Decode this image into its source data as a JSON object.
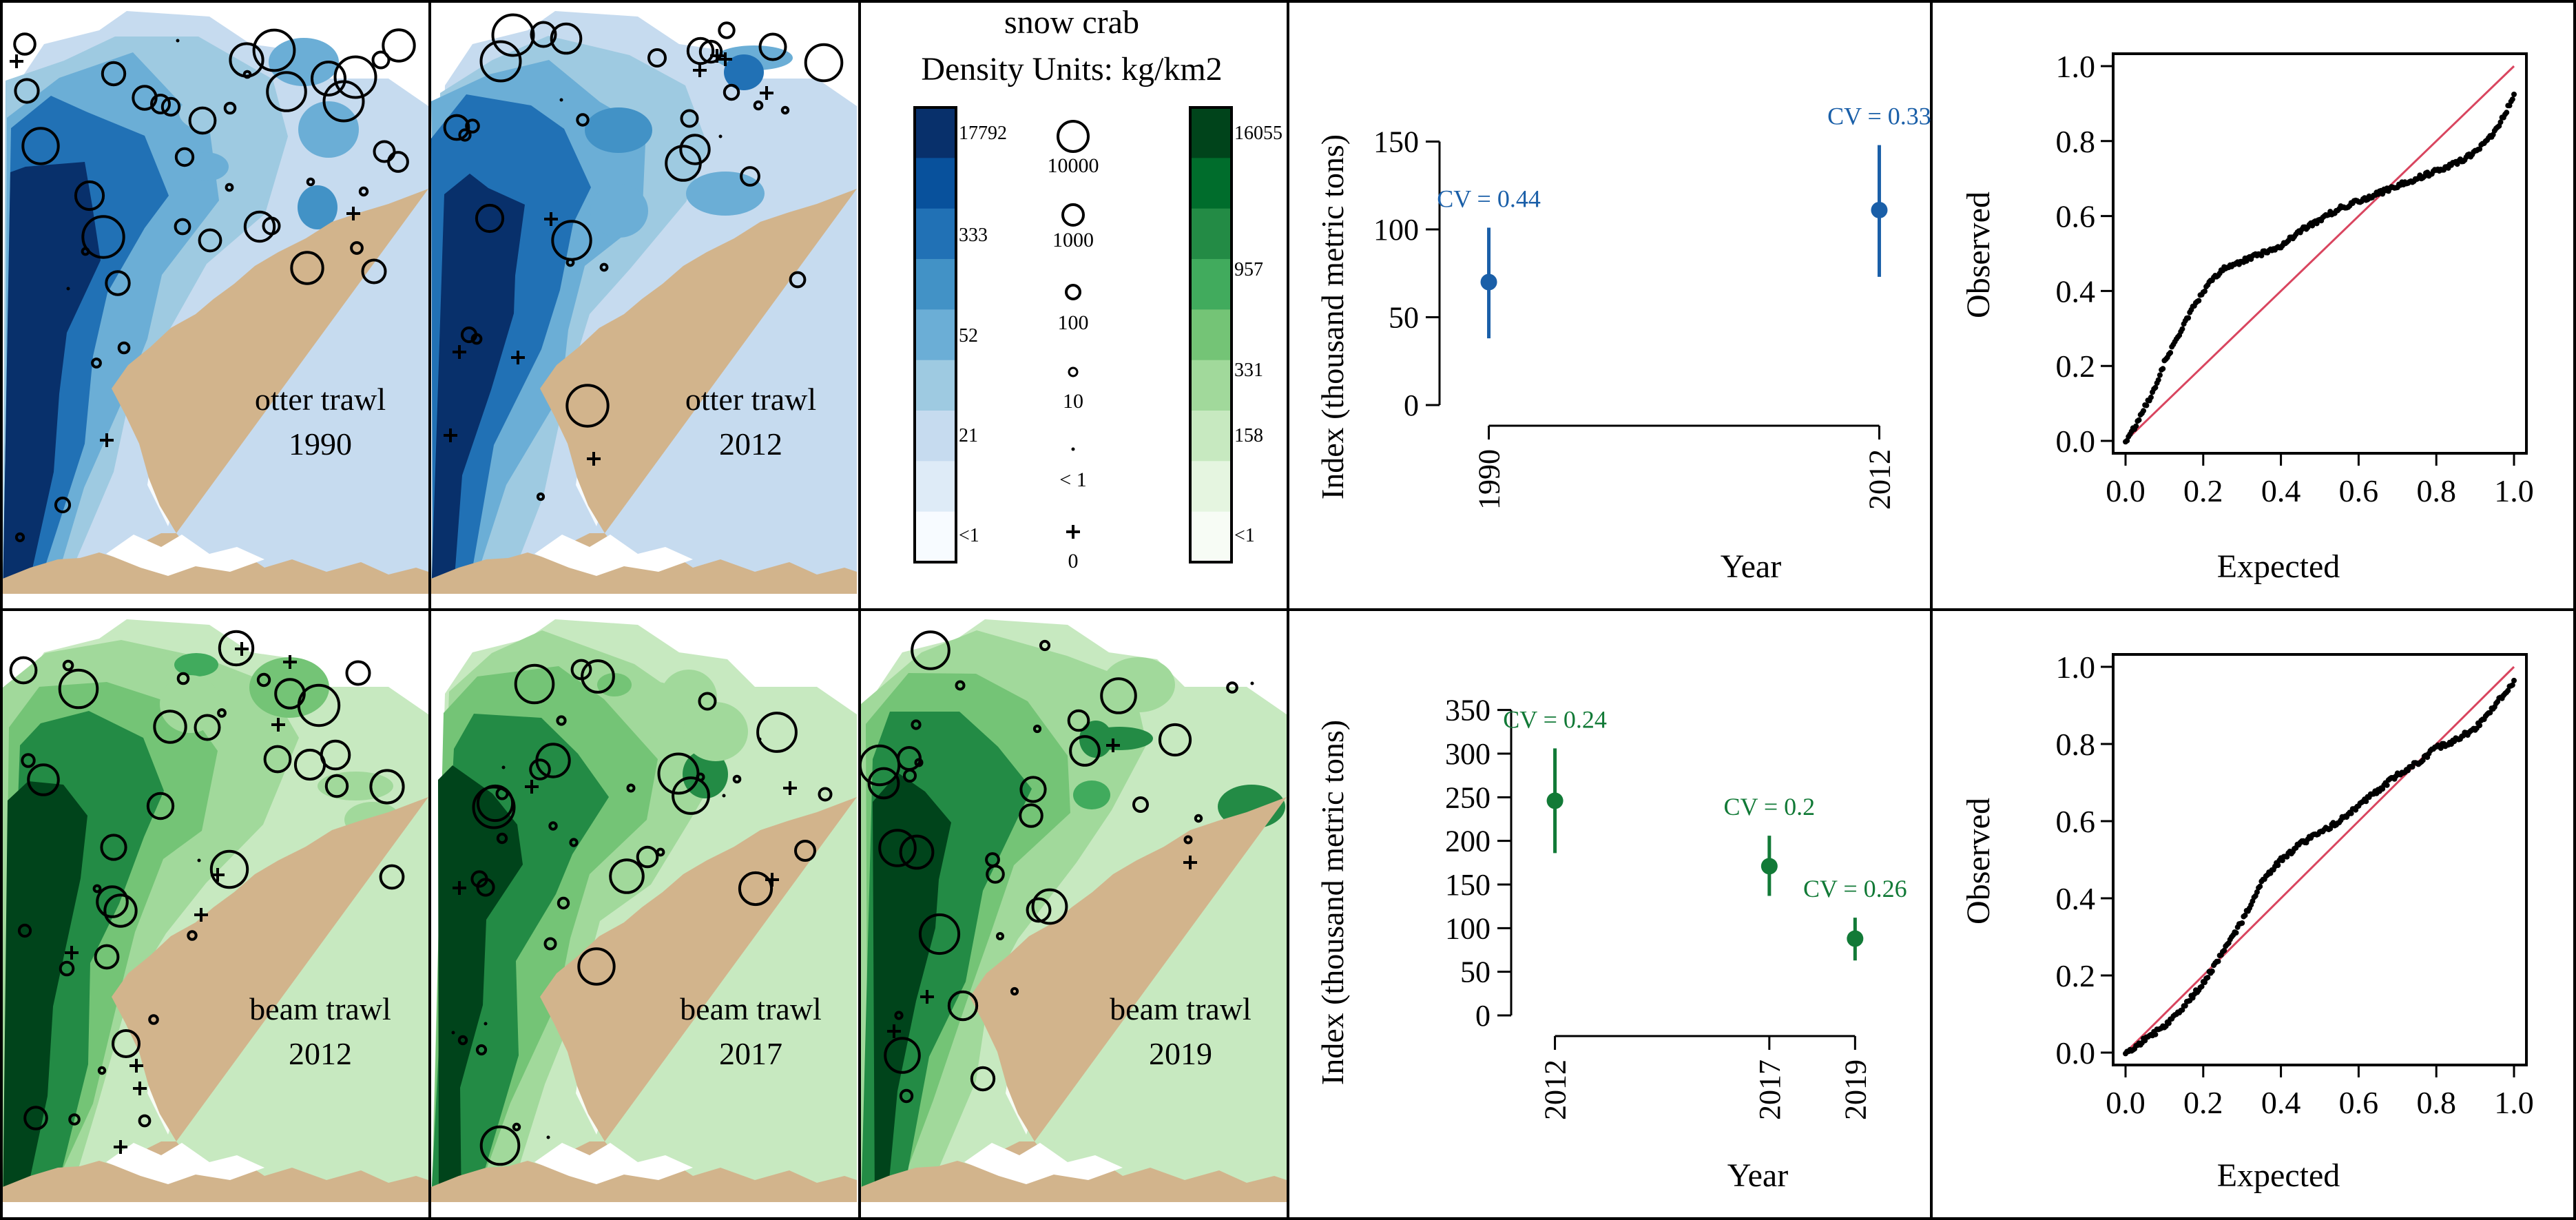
{
  "figure": {
    "legend_title": "snow crab",
    "legend_units": "Density Units: kg/km2"
  },
  "colors": {
    "blue": "#1a5fa8",
    "green": "#127a37",
    "land": "#d2b48c",
    "one_to_one": "#d9455f",
    "blue_scale": [
      "#08306b",
      "#08519c",
      "#2171b5",
      "#4292c6",
      "#6baed6",
      "#9ecae1",
      "#c6dbef",
      "#deebf7",
      "#f7fbff"
    ],
    "green_scale": [
      "#00441b",
      "#006d2c",
      "#238b45",
      "#41ab5d",
      "#74c476",
      "#a1d99b",
      "#c7e9c0",
      "#e5f5e0",
      "#f7fcf5"
    ]
  },
  "maps": [
    {
      "gear": "otter trawl",
      "year": "1990",
      "palette": "blue",
      "seed": 11
    },
    {
      "gear": "otter trawl",
      "year": "2012",
      "palette": "blue",
      "seed": 23
    },
    {
      "gear": "beam trawl",
      "year": "2012",
      "palette": "green",
      "seed": 37
    },
    {
      "gear": "beam trawl",
      "year": "2017",
      "palette": "green",
      "seed": 41
    },
    {
      "gear": "beam trawl",
      "year": "2019",
      "palette": "green",
      "seed": 53
    }
  ],
  "legend": {
    "blue_labels": [
      "17792",
      "333",
      "52",
      "21",
      "<1"
    ],
    "green_labels": [
      "16055",
      "957",
      "331",
      "158",
      "<1"
    ],
    "circle_labels": [
      "10000",
      "1000",
      "100",
      "10",
      "< 1",
      "0"
    ]
  },
  "chart_data": [
    {
      "type": "scatter",
      "subtype": "point-with-error-bar",
      "xlabel": "Year",
      "ylabel": "Index (thousand metric tons)",
      "categories": [
        "1990",
        "2012"
      ],
      "x": [
        1990,
        2012
      ],
      "values": [
        70,
        111
      ],
      "lower": [
        38,
        73
      ],
      "upper": [
        101,
        148
      ],
      "cv_labels": [
        "CV = 0.44",
        "CV = 0.33"
      ],
      "xlim": [
        1988,
        2014
      ],
      "ylim": [
        0,
        160
      ],
      "yticks": [
        "0",
        "50",
        "100",
        "150"
      ],
      "color": "#1a5fa8"
    },
    {
      "type": "scatter",
      "subtype": "qq",
      "xlabel": "Expected",
      "ylabel": "Observed",
      "xlim": [
        0,
        1
      ],
      "ylim": [
        0,
        1
      ],
      "ticks": [
        "0.0",
        "0.2",
        "0.4",
        "0.6",
        "0.8",
        "1.0"
      ],
      "curve_x": [
        0.0,
        0.02,
        0.05,
        0.08,
        0.1,
        0.13,
        0.16,
        0.2,
        0.25,
        0.3,
        0.35,
        0.4,
        0.45,
        0.5,
        0.55,
        0.6,
        0.65,
        0.7,
        0.75,
        0.8,
        0.85,
        0.9,
        0.93,
        0.96,
        0.98,
        1.0
      ],
      "curve_y": [
        0.0,
        0.03,
        0.09,
        0.15,
        0.21,
        0.27,
        0.33,
        0.4,
        0.46,
        0.48,
        0.5,
        0.52,
        0.56,
        0.59,
        0.62,
        0.64,
        0.66,
        0.68,
        0.7,
        0.72,
        0.74,
        0.77,
        0.8,
        0.84,
        0.88,
        0.92
      ]
    },
    {
      "type": "scatter",
      "subtype": "point-with-error-bar",
      "xlabel": "Year",
      "ylabel": "Index (thousand metric tons)",
      "categories": [
        "2012",
        "2017",
        "2019"
      ],
      "x": [
        2012,
        2017,
        2019
      ],
      "values": [
        246,
        171,
        88
      ],
      "lower": [
        186,
        137,
        63
      ],
      "upper": [
        306,
        206,
        112
      ],
      "cv_labels": [
        "CV = 0.24",
        "CV = 0.2",
        "CV = 0.26"
      ],
      "xlim": [
        2011.3,
        2019.3
      ],
      "ylim": [
        0,
        360
      ],
      "yticks": [
        "0",
        "50",
        "100",
        "150",
        "200",
        "250",
        "300",
        "350"
      ],
      "color": "#127a37"
    },
    {
      "type": "scatter",
      "subtype": "qq",
      "xlabel": "Expected",
      "ylabel": "Observed",
      "xlim": [
        0,
        1
      ],
      "ylim": [
        0,
        1
      ],
      "ticks": [
        "0.0",
        "0.2",
        "0.4",
        "0.6",
        "0.8",
        "1.0"
      ],
      "curve_x": [
        0.0,
        0.03,
        0.06,
        0.1,
        0.15,
        0.2,
        0.25,
        0.3,
        0.35,
        0.4,
        0.45,
        0.5,
        0.55,
        0.6,
        0.65,
        0.7,
        0.75,
        0.8,
        0.85,
        0.9,
        0.95,
        1.0
      ],
      "curve_y": [
        0.0,
        0.02,
        0.04,
        0.07,
        0.12,
        0.18,
        0.26,
        0.34,
        0.44,
        0.5,
        0.54,
        0.57,
        0.6,
        0.64,
        0.68,
        0.72,
        0.75,
        0.79,
        0.81,
        0.84,
        0.9,
        0.96
      ]
    }
  ]
}
